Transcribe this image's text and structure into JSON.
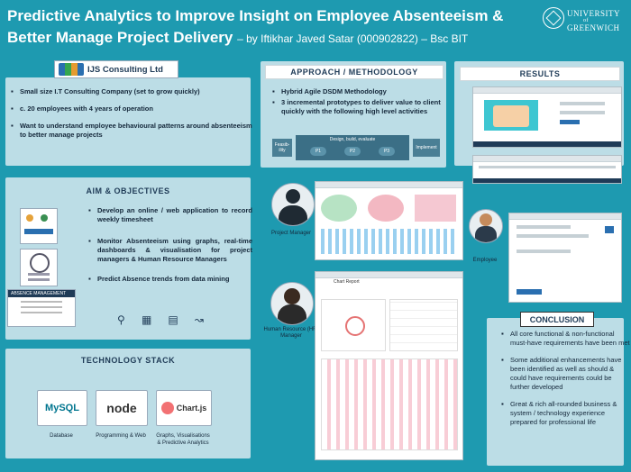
{
  "title": {
    "main": "Predictive Analytics to Improve Insight on Employee Absenteeism & Better Manage Project Delivery",
    "byline": "– by Iftikhar Javed Satar (000902822) – Bsc BIT"
  },
  "university": {
    "line1": "UNIVERSITY",
    "line2": "of",
    "line3": "GREENWICH"
  },
  "company": {
    "logo_text": "IJS Consulting Ltd",
    "bullets": [
      "Small size I.T Consulting Company (set to grow quickly)",
      "c. 20 employees with 4 years of operation",
      "Want to understand employee behavioural patterns around absenteeism to better manage projects"
    ]
  },
  "approach": {
    "header": "APPROACH / METHODOLOGY",
    "bullets": [
      "Hybrid Agile DSDM Methodology",
      "3 incremental prototypes to deliver value to client quickly with the following high level activities"
    ],
    "diagram": {
      "start": "Feasib-ility",
      "phase": "Design, build, evaluate",
      "steps": [
        "P1",
        "P2",
        "P3"
      ],
      "end": "Implement"
    }
  },
  "aims": {
    "header": "AIM & OBJECTIVES",
    "bullets": [
      "Develop an online / web application to record weekly timesheet",
      "Monitor Absenteeism using graphs, real-time dashboards & visualisation for project managers & Human Resource Managers",
      "Predict Absence trends from data mining"
    ],
    "mini_card_title": "ABSENCE MANAGEMENT"
  },
  "tech": {
    "header": "TECHNOLOGY STACK",
    "items": [
      {
        "logo": "MySQL",
        "label": "Database"
      },
      {
        "logo": "node",
        "label": "Programming & Web"
      },
      {
        "logo": "Chart.js",
        "label": "Graphs, Visualisations & Predictive Analytics"
      }
    ]
  },
  "results": {
    "header": "RESULTS",
    "roles": [
      "Project Manager",
      "Human Resource (HR) Manager",
      "Employee"
    ],
    "screen_title": "Chart Report"
  },
  "conclusion": {
    "header": "CONCLUSION",
    "bullets": [
      "All core functional & non-functional must-have requirements have been met",
      "Some additional enhancements have been identified as well as should & could have requirements could be further developed",
      "Great & rich all-rounded business & system / technology experience prepared for professional life"
    ]
  },
  "colors": {
    "background": "#1e9ab0",
    "panel": "#bcdde6",
    "heading": "#1f3b57"
  }
}
